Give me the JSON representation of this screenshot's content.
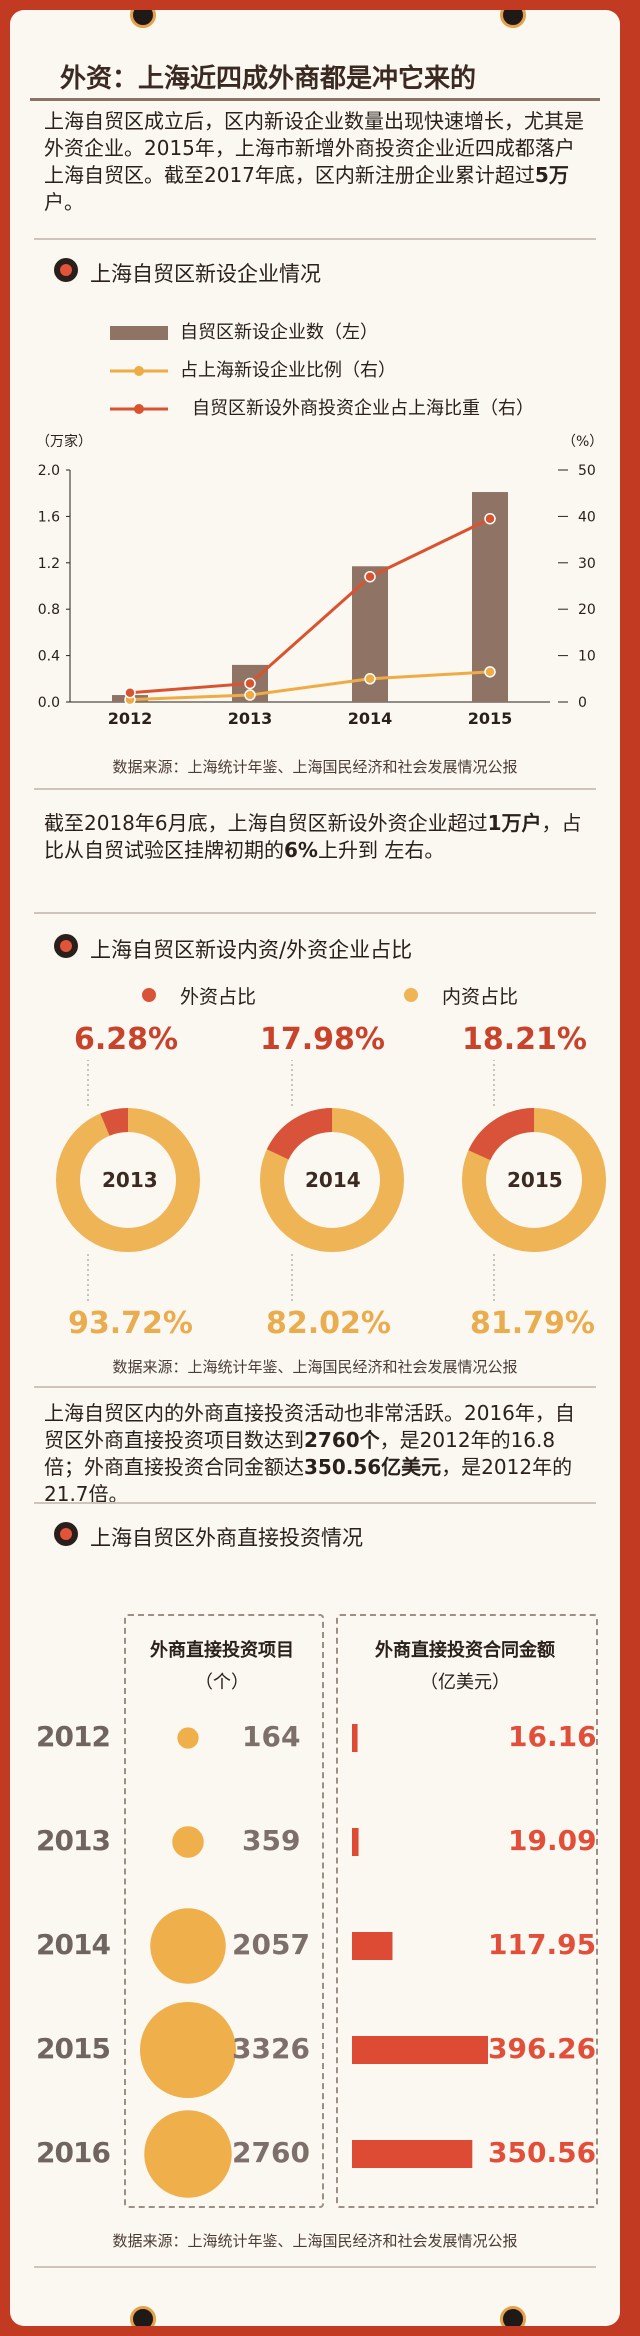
{
  "title": "外资：上海近四成外商都是冲它来的",
  "intro": {
    "text": "上海自贸区成立后，区内新设企业数量出现快速增长，尤其是外资企业。2015年，上海市新增外商投资企业近四成都落户上海自贸区。截至2017年底，区内新注册企业累计超过",
    "bold": "5万",
    "tail": "户。"
  },
  "section1": {
    "heading": "上海自贸区新设企业情况",
    "left_axis_unit": "（万家）",
    "right_axis_unit": "（%）",
    "source": "数据来源：上海统计年鉴、上海国民经济和社会发展情况公报"
  },
  "chart_data": [
    {
      "type": "bar+line",
      "categories": [
        "2012",
        "2013",
        "2014",
        "2015"
      ],
      "series": [
        {
          "name": "自贸区新设企业数（左）",
          "kind": "bar",
          "axis": "left",
          "values": [
            0.06,
            0.32,
            1.17,
            1.81
          ],
          "color": "#8f7466"
        },
        {
          "name": "占上海新设企业比例（右）",
          "kind": "line",
          "axis": "right",
          "values": [
            0.5,
            1.5,
            5,
            6.5
          ],
          "color": "#efac46"
        },
        {
          "name": "自贸区新设外商投资企业占上海比重（右）",
          "kind": "line",
          "axis": "right",
          "values": [
            2,
            4,
            27,
            39.5
          ],
          "color": "#d9532e"
        }
      ],
      "left_ticks": [
        "0.0",
        "0.4",
        "0.8",
        "1.2",
        "1.6",
        "2.0"
      ],
      "right_ticks": [
        "0",
        "10",
        "20",
        "30",
        "40",
        "50"
      ],
      "ylim_left": [
        0,
        2.0
      ],
      "ylim_right": [
        0,
        50
      ],
      "left_unit": "（万家）",
      "right_unit": "（%）"
    },
    {
      "type": "pie",
      "title": "上海自贸区新设内资/外资企业占比",
      "legend": [
        "外资占比",
        "内资占比"
      ],
      "colors": {
        "foreign": "#d9533a",
        "domestic": "#efb456"
      },
      "items": [
        {
          "year": "2013",
          "foreign": 6.28,
          "domestic": 93.72,
          "foreign_label": "6.28%",
          "domestic_label": "93.72%"
        },
        {
          "year": "2014",
          "foreign": 17.98,
          "domestic": 82.02,
          "foreign_label": "17.98%",
          "domestic_label": "82.02%"
        },
        {
          "year": "2015",
          "foreign": 18.21,
          "domestic": 81.79,
          "foreign_label": "18.21%",
          "domestic_label": "81.79%"
        }
      ]
    },
    {
      "type": "table",
      "title": "上海自贸区外商直接投资情况",
      "columns": [
        {
          "header": "外商直接投资项目",
          "unit": "（个）"
        },
        {
          "header": "外商直接投资合同金额",
          "unit": "（亿美元）"
        }
      ],
      "rows": [
        {
          "year": "2012",
          "projects": 164,
          "amount": 16.16,
          "projects_label": "164",
          "amount_label": "16.16"
        },
        {
          "year": "2013",
          "projects": 359,
          "amount": 19.09,
          "projects_label": "359",
          "amount_label": "19.09"
        },
        {
          "year": "2014",
          "projects": 2057,
          "amount": 117.95,
          "projects_label": "2057",
          "amount_label": "117.95"
        },
        {
          "year": "2015",
          "projects": 3326,
          "amount": 396.26,
          "projects_label": "3326",
          "amount_label": "396.26"
        },
        {
          "year": "2016",
          "projects": 2760,
          "amount": 350.56,
          "projects_label": "2760",
          "amount_label": "350.56"
        }
      ]
    }
  ],
  "para2": {
    "text": "截至2018年6月底，上海自贸区新设外资企业超过",
    "bold1": "1万户",
    "mid": "，占比从自贸试验区挂牌初期的",
    "bold2": "6%",
    "tail": "上升到 左右。"
  },
  "section2": {
    "heading": "上海自贸区新设内资/外资企业占比",
    "source": "数据来源：上海统计年鉴、上海国民经济和社会发展情况公报"
  },
  "para3": {
    "a": "上海自贸区内的外商直接投资活动也非常活跃。2016年，自贸区外商直接投资项目数达到",
    "b": "2760个",
    "c": "，是2012年的16.8倍；外商直接投资合同金额达",
    "d": "350.56亿美元",
    "e": "，是2012年的21.7倍。"
  },
  "section3": {
    "heading": "上海自贸区外商直接投资情况",
    "source": "数据来源：上海统计年鉴、上海国民经济和社会发展情况公报"
  }
}
